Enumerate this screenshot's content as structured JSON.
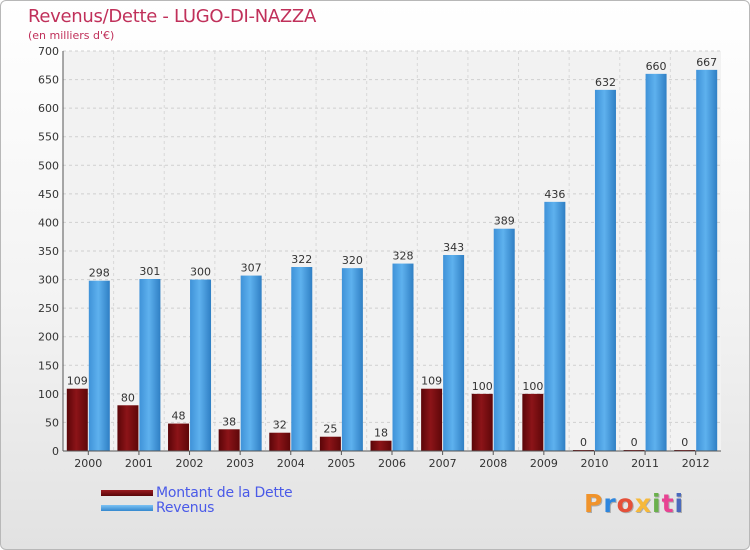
{
  "chart_data": {
    "type": "bar",
    "title": "Revenus/Dette - LUGO-DI-NAZZA",
    "subtitle": "(en milliers d'€)",
    "categories": [
      "2000",
      "2001",
      "2002",
      "2003",
      "2004",
      "2005",
      "2006",
      "2007",
      "2008",
      "2009",
      "2010",
      "2011",
      "2012"
    ],
    "series": [
      {
        "name": "Montant de la Dette",
        "color": "#7a0c10",
        "values": [
          109,
          80,
          48,
          38,
          32,
          25,
          18,
          109,
          100,
          100,
          0,
          0,
          0
        ]
      },
      {
        "name": "Revenus",
        "color": "#4ea3e6",
        "values": [
          298,
          301,
          300,
          307,
          322,
          320,
          328,
          343,
          389,
          436,
          632,
          660,
          667
        ]
      }
    ],
    "yticks": [
      0,
      50,
      100,
      150,
      200,
      250,
      300,
      350,
      400,
      450,
      500,
      550,
      600,
      650,
      700
    ],
    "ylim": [
      0,
      700
    ],
    "grid": true,
    "legend_position": "bottom-left"
  },
  "logo": {
    "text": "Proxiti",
    "colors": [
      "#f0932b",
      "#2e86de",
      "#e55039",
      "#f6b93b",
      "#6ab04c",
      "#e84393",
      "#4a69bd"
    ]
  }
}
